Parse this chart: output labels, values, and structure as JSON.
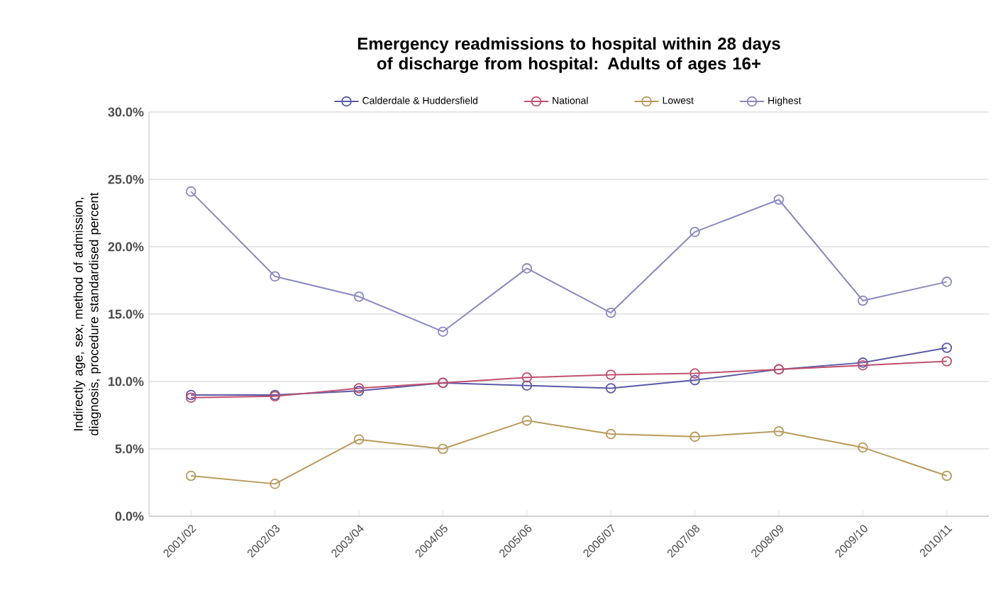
{
  "chart_data": {
    "type": "line",
    "title": "Emergency readmissions to hospital within 28 days of discharge from hospital: Adults of ages 16+",
    "ylabel": "Indirectly age, sex, method of admission, diagnosis, procedure standardised percent",
    "categories": [
      "2001/02",
      "2002/03",
      "2003/04",
      "2004/05",
      "2005/06",
      "2006/07",
      "2007/08",
      "2008/09",
      "2009/10",
      "2010/11"
    ],
    "series": [
      {
        "name": "Calderdale & Huddersfield",
        "color": "#5a5aa8",
        "values": [
          9.0,
          9.0,
          9.3,
          9.9,
          9.7,
          9.5,
          10.1,
          10.9,
          11.4,
          12.5
        ]
      },
      {
        "name": "National",
        "color": "#c0506e",
        "values": [
          8.8,
          8.9,
          9.5,
          9.9,
          10.3,
          10.5,
          10.6,
          10.9,
          11.2,
          11.5
        ]
      },
      {
        "name": "Lowest",
        "color": "#b89a5a",
        "values": [
          3.0,
          2.4,
          5.7,
          5.0,
          7.1,
          6.1,
          5.9,
          6.3,
          5.1,
          3.0
        ]
      },
      {
        "name": "Highest",
        "color": "#8a88c0",
        "values": [
          24.1,
          17.8,
          16.3,
          13.7,
          18.4,
          15.1,
          21.1,
          23.5,
          16.0,
          17.4
        ]
      }
    ],
    "ylim": [
      0,
      30
    ],
    "yticks": [
      {
        "value": 0,
        "label": "0.0%"
      },
      {
        "value": 5,
        "label": "5.0%"
      },
      {
        "value": 10,
        "label": "10.0%"
      },
      {
        "value": 15,
        "label": "15.0%"
      },
      {
        "value": 20,
        "label": "20.0%"
      },
      {
        "value": 25,
        "label": "25.0%"
      },
      {
        "value": 30,
        "label": "30.0%"
      }
    ],
    "grid": "y",
    "legend": "top",
    "marker": "circle",
    "line_style": "solid"
  }
}
